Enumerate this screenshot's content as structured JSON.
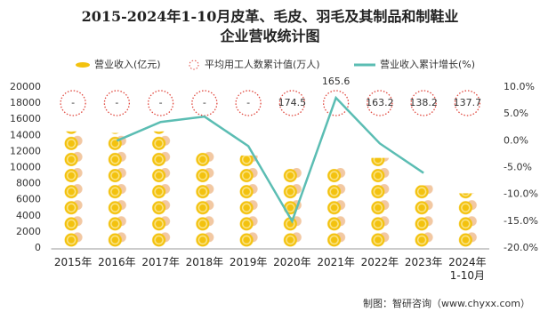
{
  "chart_data": {
    "type": "bar",
    "title": "2015-2024年1-10月皮革、毛皮、羽毛及其制品和制鞋业\n企业营收统计图",
    "categories": [
      "2015年",
      "2016年",
      "2017年",
      "2018年",
      "2019年",
      "2020年",
      "2021年",
      "2022年",
      "2023年",
      "2024年\n1-10月"
    ],
    "series": [
      {
        "name": "营业收入(亿元)",
        "color": "#f3c20f",
        "values": [
          14500,
          14300,
          14500,
          12000,
          11500,
          10000,
          10000,
          11200,
          7800,
          6800
        ]
      },
      {
        "name": "平均用工人数累计值(万人)",
        "color": "#e0463c",
        "values": [
          null,
          null,
          null,
          null,
          null,
          174.5,
          165.6,
          163.2,
          138.2,
          137.7
        ],
        "value_labels": [
          "-",
          "-",
          "-",
          "-",
          "-",
          "174.5",
          "165.6",
          "163.2",
          "138.2",
          "137.7"
        ]
      },
      {
        "name": "营业收入累计增长(%)",
        "color": "#5bbdb3",
        "axis": "y2",
        "values": [
          null,
          0,
          3.5,
          4.5,
          -1,
          -15,
          8,
          -0.5,
          -6,
          null
        ]
      }
    ],
    "ylim": [
      0,
      20000
    ],
    "yticks": [
      0,
      2000,
      4000,
      6000,
      8000,
      10000,
      12000,
      14000,
      16000,
      18000,
      20000
    ],
    "y2lim": [
      -20,
      10
    ],
    "y2ticks": [
      {
        "value": -20,
        "label": "-20.0%"
      },
      {
        "value": -15,
        "label": "-15.0%"
      },
      {
        "value": -10,
        "label": "-10.0%"
      },
      {
        "value": -5,
        "label": "-5.0%"
      },
      {
        "value": 0,
        "label": "0.0%"
      },
      {
        "value": 5,
        "label": "5.0%"
      },
      {
        "value": 10,
        "label": "10.0%"
      }
    ],
    "source": "制图：智研咨询（www.chyxx.com）"
  }
}
